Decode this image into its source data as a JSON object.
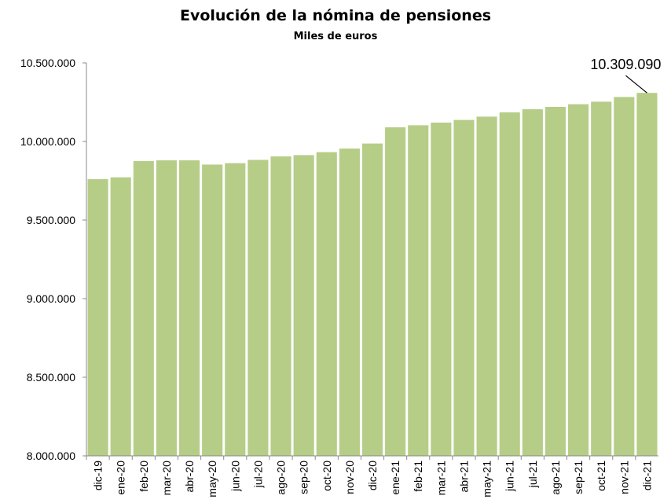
{
  "chart_data": {
    "type": "bar",
    "title": "Evolución de la nómina de pensiones",
    "subtitle": "Miles de euros",
    "xlabel": "",
    "ylabel": "",
    "ylim": [
      8000000,
      10500000
    ],
    "yticks": [
      8000000,
      8500000,
      9000000,
      9500000,
      10000000,
      10500000
    ],
    "ytick_labels": [
      "8.000.000",
      "8.500.000",
      "9.000.000",
      "9.500.000",
      "10.000.000",
      "10.500.000"
    ],
    "grid": false,
    "bar_color": "#b6cd87",
    "categories": [
      "dic-19",
      "ene-20",
      "feb-20",
      "mar-20",
      "abr-20",
      "may-20",
      "jun-20",
      "jul-20",
      "ago-20",
      "sep-20",
      "oct-20",
      "nov-20",
      "dic-20",
      "ene-21",
      "feb-21",
      "mar-21",
      "abr-21",
      "may-21",
      "jun-21",
      "jul-21",
      "ago-21",
      "sep-21",
      "oct-21",
      "nov-21",
      "dic-21"
    ],
    "values": [
      9760000,
      9772000,
      9875000,
      9880000,
      9880000,
      9853000,
      9862000,
      9883000,
      9905000,
      9913000,
      9932000,
      9955000,
      9987000,
      10090000,
      10103000,
      10120000,
      10137000,
      10158000,
      10185000,
      10205000,
      10220000,
      10237000,
      10253000,
      10283000,
      10309090
    ],
    "annotation": {
      "category": "dic-21",
      "text": "10.309.090"
    }
  }
}
